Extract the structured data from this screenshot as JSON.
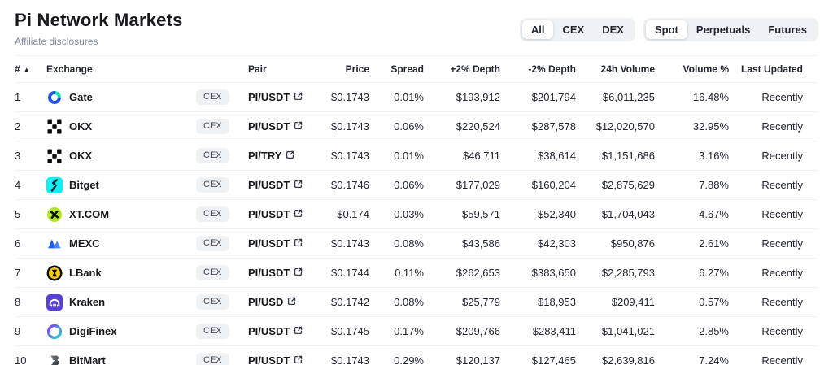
{
  "page": {
    "title": "Pi Network Markets",
    "subtitle": "Affiliate disclosures"
  },
  "filters": {
    "groups": [
      {
        "name": "market-type",
        "options": [
          "All",
          "CEX",
          "DEX"
        ],
        "selected": "All"
      },
      {
        "name": "contract-type",
        "options": [
          "Spot",
          "Perpetuals",
          "Futures"
        ],
        "selected": "Spot"
      }
    ]
  },
  "table": {
    "columns": [
      "#",
      "Exchange",
      "",
      "Pair",
      "Price",
      "Spread",
      "+2% Depth",
      "-2% Depth",
      "24h Volume",
      "Volume %",
      "Last Updated"
    ],
    "sort_indicator": "▲",
    "rows": [
      {
        "rank": "1",
        "exchange": "Gate",
        "logo": "gate-logo",
        "badge": "CEX",
        "pair": "PI/USDT",
        "price": "$0.1743",
        "spread": "0.01%",
        "depth_plus": "$193,912",
        "depth_minus": "$201,794",
        "volume_24h": "$6,011,235",
        "volume_pct": "16.48%",
        "updated": "Recently"
      },
      {
        "rank": "2",
        "exchange": "OKX",
        "logo": "okx-logo",
        "badge": "CEX",
        "pair": "PI/USDT",
        "price": "$0.1743",
        "spread": "0.06%",
        "depth_plus": "$220,524",
        "depth_minus": "$287,578",
        "volume_24h": "$12,020,570",
        "volume_pct": "32.95%",
        "updated": "Recently"
      },
      {
        "rank": "3",
        "exchange": "OKX",
        "logo": "okx-logo",
        "badge": "CEX",
        "pair": "PI/TRY",
        "price": "$0.1743",
        "spread": "0.01%",
        "depth_plus": "$46,711",
        "depth_minus": "$38,614",
        "volume_24h": "$1,151,686",
        "volume_pct": "3.16%",
        "updated": "Recently"
      },
      {
        "rank": "4",
        "exchange": "Bitget",
        "logo": "bitget-logo",
        "badge": "CEX",
        "pair": "PI/USDT",
        "price": "$0.1746",
        "spread": "0.06%",
        "depth_plus": "$177,029",
        "depth_minus": "$160,204",
        "volume_24h": "$2,875,629",
        "volume_pct": "7.88%",
        "updated": "Recently"
      },
      {
        "rank": "5",
        "exchange": "XT.COM",
        "logo": "xt-logo",
        "badge": "CEX",
        "pair": "PI/USDT",
        "price": "$0.174",
        "spread": "0.03%",
        "depth_plus": "$59,571",
        "depth_minus": "$52,340",
        "volume_24h": "$1,704,043",
        "volume_pct": "4.67%",
        "updated": "Recently"
      },
      {
        "rank": "6",
        "exchange": "MEXC",
        "logo": "mexc-logo",
        "badge": "CEX",
        "pair": "PI/USDT",
        "price": "$0.1743",
        "spread": "0.08%",
        "depth_plus": "$43,586",
        "depth_minus": "$42,303",
        "volume_24h": "$950,876",
        "volume_pct": "2.61%",
        "updated": "Recently"
      },
      {
        "rank": "7",
        "exchange": "LBank",
        "logo": "lbank-logo",
        "badge": "CEX",
        "pair": "PI/USDT",
        "price": "$0.1744",
        "spread": "0.11%",
        "depth_plus": "$262,653",
        "depth_minus": "$383,650",
        "volume_24h": "$2,285,793",
        "volume_pct": "6.27%",
        "updated": "Recently"
      },
      {
        "rank": "8",
        "exchange": "Kraken",
        "logo": "kraken-logo",
        "badge": "CEX",
        "pair": "PI/USD",
        "price": "$0.1742",
        "spread": "0.08%",
        "depth_plus": "$25,779",
        "depth_minus": "$18,953",
        "volume_24h": "$209,411",
        "volume_pct": "0.57%",
        "updated": "Recently"
      },
      {
        "rank": "9",
        "exchange": "DigiFinex",
        "logo": "digifinex-logo",
        "badge": "CEX",
        "pair": "PI/USDT",
        "price": "$0.1745",
        "spread": "0.17%",
        "depth_plus": "$209,766",
        "depth_minus": "$283,411",
        "volume_24h": "$1,041,021",
        "volume_pct": "2.85%",
        "updated": "Recently"
      },
      {
        "rank": "10",
        "exchange": "BitMart",
        "logo": "bitmart-logo",
        "badge": "CEX",
        "pair": "PI/USDT",
        "price": "$0.1743",
        "spread": "0.29%",
        "depth_plus": "$120,137",
        "depth_minus": "$127,465",
        "volume_24h": "$2,639,816",
        "volume_pct": "7.24%",
        "updated": "Recently"
      }
    ]
  },
  "colors": {
    "text_dark": "#222531",
    "text_gray": "#808a9d",
    "divider": "#eff2f5",
    "chip_bg": "#eff2f5",
    "selected_pill": "#ffffff"
  },
  "icons": {
    "sort": "sort-asc-icon",
    "pair_link": "external-link-icon"
  }
}
